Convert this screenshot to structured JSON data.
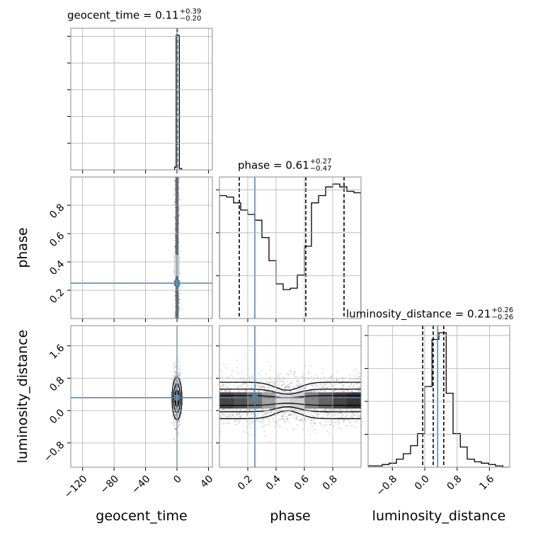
{
  "chart_data": {
    "type": "corner",
    "parameters": [
      "geocent_time",
      "phase",
      "luminosity_distance"
    ],
    "truths": {
      "geocent_time": 0.0,
      "phase": 0.25,
      "luminosity_distance": 0.32
    },
    "colors": {
      "truth": "#4682b4",
      "hist": "#000000",
      "grid": "#b0b0b0",
      "points": "#808080"
    },
    "grid": true,
    "titles": [
      {
        "name": "geocent_time",
        "prefix": "geocent_time = 0.11",
        "plus": "+0.39",
        "minus": "−0.20"
      },
      {
        "name": "phase",
        "prefix": "phase = 0.61",
        "plus": "+0.27",
        "minus": "−0.47"
      },
      {
        "name": "luminosity_distance",
        "prefix": "luminosity_distance = 0.21",
        "plus": "+0.26",
        "minus": "−0.26"
      }
    ],
    "axes": {
      "geocent_time": {
        "range": [
          -135,
          45
        ],
        "ticks": [
          -120,
          -80,
          -40,
          0,
          40
        ],
        "tick_labels": [
          "−120",
          "−80",
          "−40",
          "0",
          "40"
        ],
        "label": "geocent_time"
      },
      "phase": {
        "range": [
          0.0,
          1.0
        ],
        "ticks": [
          0.2,
          0.4,
          0.6,
          0.8
        ],
        "tick_labels": [
          "0.2",
          "0.4",
          "0.6",
          "0.8"
        ],
        "label": "phase"
      },
      "luminosity_distance": {
        "range": [
          -1.4,
          2.1
        ],
        "ticks": [
          -0.8,
          0.0,
          0.8,
          1.6
        ],
        "tick_labels": [
          "−0.8",
          "0.0",
          "0.8",
          "1.6"
        ],
        "label": "luminosity_distance"
      }
    },
    "quantiles": {
      "geocent_time": [
        -0.09,
        0.11,
        0.5
      ],
      "phase": [
        0.14,
        0.61,
        0.88
      ],
      "luminosity_distance": [
        -0.05,
        0.21,
        0.47
      ]
    },
    "hist_1d": {
      "geocent_time": {
        "edges": [
          -3,
          -1,
          1,
          3,
          6
        ],
        "counts": [
          0.02,
          1.0,
          1.0,
          0.01
        ]
      },
      "phase": {
        "edges": [
          0.0,
          0.05,
          0.1,
          0.15,
          0.2,
          0.25,
          0.3,
          0.35,
          0.4,
          0.45,
          0.5,
          0.55,
          0.6,
          0.65,
          0.7,
          0.75,
          0.8,
          0.85,
          0.9,
          0.95,
          1.0
        ],
        "counts": [
          0.85,
          0.84,
          0.8,
          0.75,
          0.72,
          0.68,
          0.56,
          0.4,
          0.24,
          0.2,
          0.21,
          0.3,
          0.5,
          0.8,
          0.85,
          0.91,
          0.93,
          0.91,
          0.88,
          0.87
        ]
      },
      "luminosity_distance": {
        "edges": [
          -1.4,
          -1.23,
          -1.05,
          -0.88,
          -0.7,
          -0.53,
          -0.35,
          -0.18,
          0.0,
          0.18,
          0.35,
          0.53,
          0.7,
          0.88,
          1.05,
          1.23,
          1.4,
          1.58,
          1.75,
          1.93,
          2.1
        ],
        "counts": [
          0.01,
          0.01,
          0.02,
          0.03,
          0.06,
          0.1,
          0.16,
          0.25,
          0.6,
          0.95,
          1.0,
          0.55,
          0.25,
          0.15,
          0.06,
          0.04,
          0.03,
          0.02,
          0.01,
          0.0
        ]
      }
    },
    "scatter_2d": {
      "phase_vs_geocent_time": {
        "x_center": 0.0,
        "x_spread": 1.5,
        "y_range": [
          0.0,
          1.0
        ]
      },
      "luminosity_distance_vs_geocent_time": {
        "x_center": 0.0,
        "x_spread": 2.5,
        "y_center": 0.3,
        "y_spread": 0.35
      },
      "luminosity_distance_vs_phase": {
        "x_range": [
          0.0,
          1.0
        ],
        "y_center": 0.25,
        "y_spread": 0.3
      }
    }
  }
}
